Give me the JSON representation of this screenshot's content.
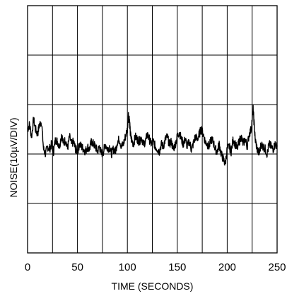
{
  "chart_data": {
    "type": "line",
    "xlabel": "TIME (SECONDS)",
    "ylabel": "NOISE(10µV/DIV)",
    "xlim": [
      0,
      250
    ],
    "x_ticks": [
      "0",
      "50",
      "100",
      "150",
      "200",
      "250"
    ],
    "y_divisions": 5,
    "ylim_div": [
      -2,
      3
    ],
    "grid": true,
    "series": [
      {
        "x": [
          0,
          2,
          4,
          6,
          8,
          10,
          12,
          14,
          16,
          18,
          20,
          22,
          24,
          26,
          28,
          30,
          32,
          34,
          36,
          38,
          40,
          42,
          44,
          46,
          48,
          50,
          52,
          54,
          56,
          58,
          60,
          62,
          64,
          66,
          68,
          70,
          72,
          74,
          76,
          78,
          80,
          82,
          84,
          86,
          88,
          90,
          92,
          94,
          96,
          98,
          100,
          101,
          102,
          103,
          104,
          106,
          108,
          110,
          112,
          114,
          116,
          118,
          120,
          122,
          124,
          126,
          128,
          130,
          132,
          134,
          136,
          138,
          140,
          142,
          144,
          146,
          148,
          150,
          152,
          154,
          156,
          158,
          160,
          162,
          164,
          166,
          168,
          170,
          172,
          174,
          176,
          178,
          180,
          182,
          184,
          186,
          188,
          190,
          192,
          194,
          196,
          198,
          200,
          202,
          204,
          206,
          208,
          210,
          212,
          214,
          216,
          218,
          220,
          222,
          224,
          226,
          227,
          228,
          230,
          232,
          234,
          236,
          238,
          240,
          242,
          244,
          246,
          248,
          250
        ],
        "y": [
          0.5,
          0.6,
          0.35,
          0.7,
          0.5,
          0.4,
          0.6,
          0.65,
          0.1,
          0.0,
          0.15,
          0.1,
          0.2,
          0.05,
          0.3,
          0.25,
          0.15,
          0.4,
          0.2,
          0.3,
          0.1,
          0.35,
          0.2,
          0.25,
          0.1,
          0.05,
          0.2,
          0.15,
          0.1,
          0.05,
          0.15,
          0.1,
          0.25,
          0.2,
          0.15,
          0.05,
          0.15,
          0.0,
          0.05,
          0.2,
          0.1,
          0.15,
          0.0,
          0.1,
          0.05,
          0.25,
          0.3,
          0.15,
          0.2,
          0.35,
          0.5,
          0.8,
          0.7,
          0.4,
          0.3,
          0.2,
          0.35,
          0.3,
          0.25,
          0.35,
          0.2,
          0.25,
          0.4,
          0.3,
          0.2,
          0.25,
          0.15,
          0.1,
          0.05,
          0.2,
          0.15,
          0.3,
          0.35,
          0.2,
          0.25,
          0.1,
          0.2,
          0.35,
          0.45,
          0.3,
          0.2,
          0.3,
          0.15,
          0.25,
          0.1,
          0.2,
          0.35,
          0.3,
          0.4,
          0.5,
          0.4,
          0.25,
          0.2,
          0.15,
          0.3,
          0.25,
          0.1,
          0.05,
          0.2,
          0.0,
          -0.1,
          -0.2,
          0.1,
          0.15,
          0.05,
          0.3,
          0.2,
          0.1,
          0.25,
          0.35,
          0.2,
          0.3,
          0.15,
          0.4,
          0.5,
          0.9,
          0.6,
          0.3,
          0.1,
          0.0,
          0.2,
          0.15,
          0.1,
          0.0,
          0.2,
          0.15,
          0.1,
          0.2,
          0.15
        ]
      }
    ]
  }
}
